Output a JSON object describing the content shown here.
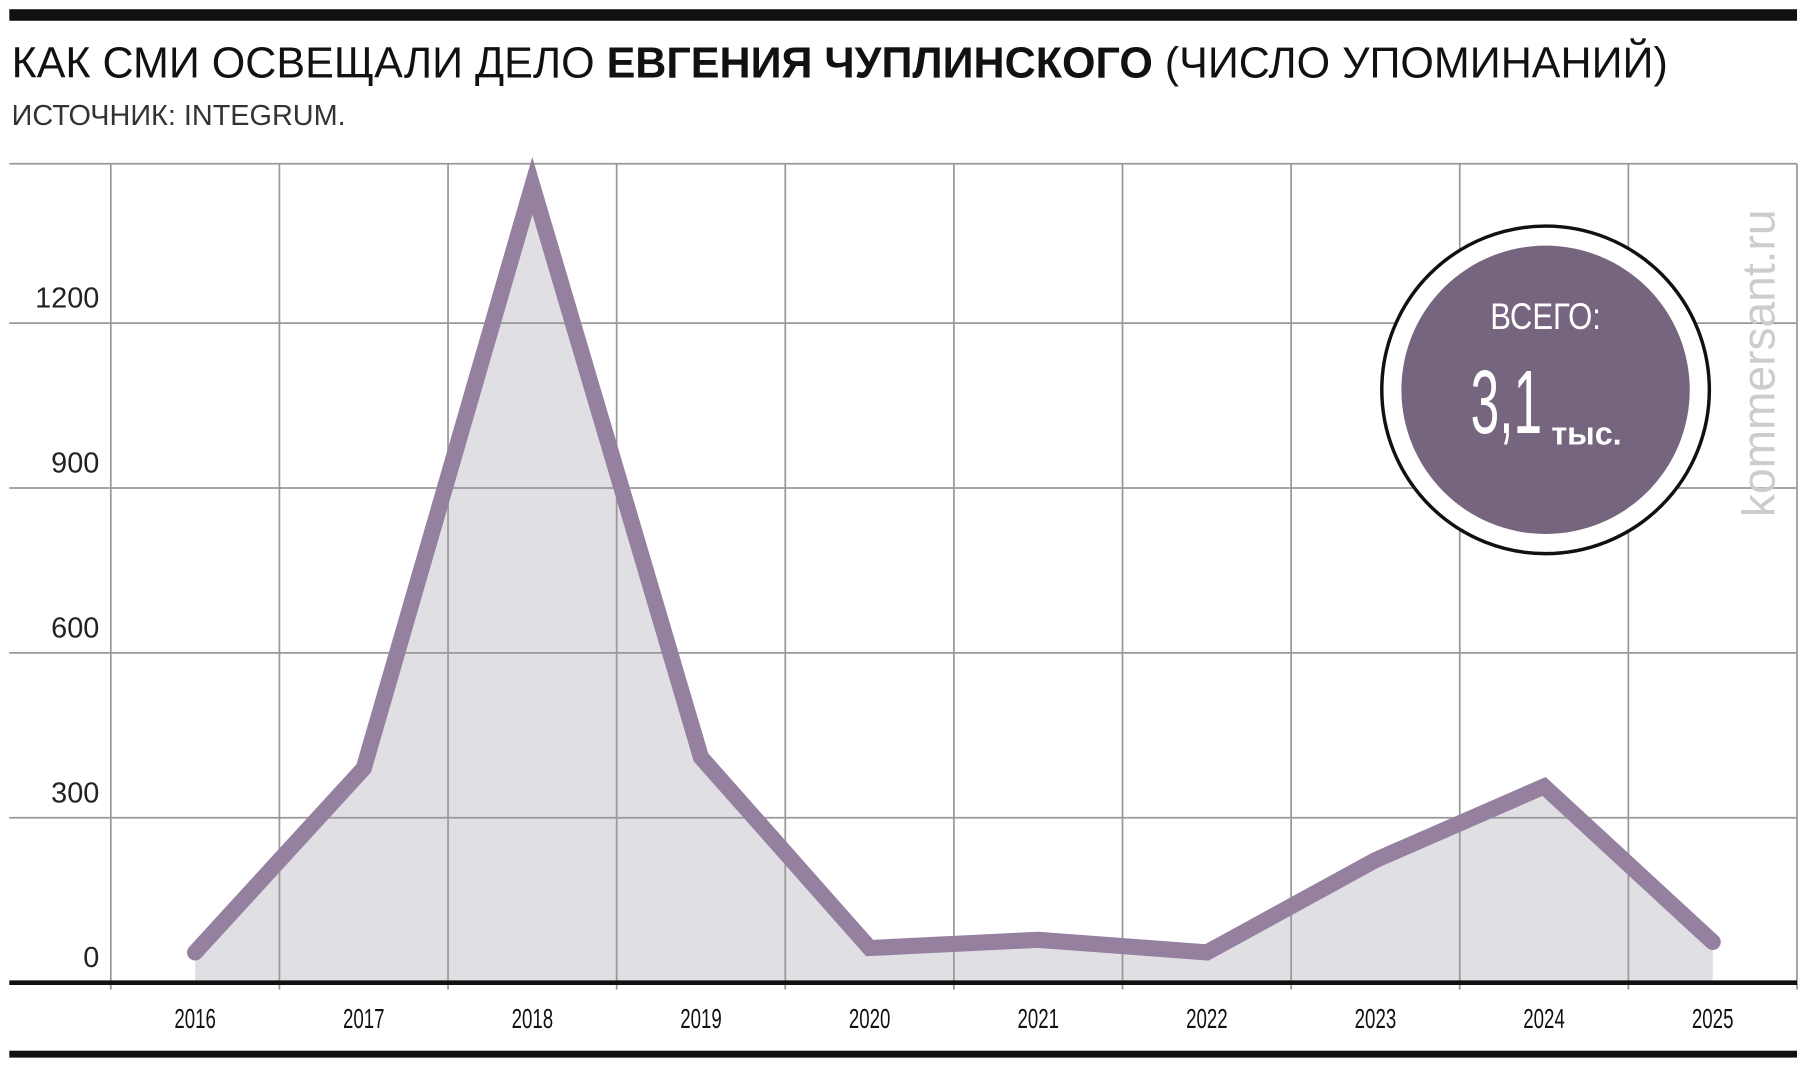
{
  "chart_data": {
    "type": "line",
    "title": [
      "КАК СМИ ОСВЕЩАЛИ ДЕЛО",
      "ЕВГЕНИЯ ЧУПЛИНСКОГО",
      "(ЧИСЛО УПОМИНАНИЙ)"
    ],
    "subtitle": "ИСТОЧНИК: INTEGRUM.",
    "categories": [
      "2016",
      "2017",
      "2018",
      "2019",
      "2020",
      "2021",
      "2022",
      "2023",
      "2024",
      "2025"
    ],
    "values": [
      55,
      390,
      1450,
      410,
      63,
      78,
      55,
      223,
      357,
      74
    ],
    "color": "#9580a0",
    "area_color": "#dfdfe4",
    "ylim": [
      0,
      1490
    ],
    "yticks": [
      0,
      300,
      600,
      900,
      1200
    ],
    "grid": true,
    "annotation": {
      "label": "ВСЕГО:",
      "value": "3,1",
      "unit": "тыс.",
      "color": "#76657e"
    },
    "watermark": "kommersant.ru"
  }
}
